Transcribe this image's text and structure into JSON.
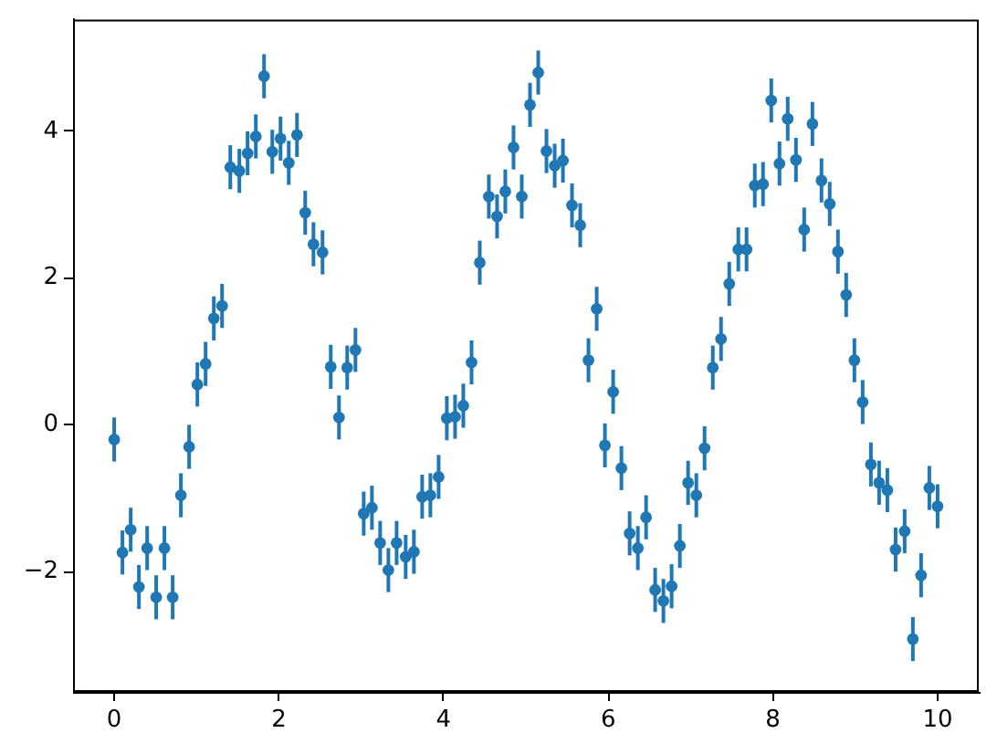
{
  "chart_data": {
    "type": "scatter",
    "color": "#1f77b4",
    "marker": "circle",
    "grid": false,
    "legend": false,
    "x": [
      0,
      0.1,
      0.2,
      0.3,
      0.4,
      0.51,
      0.61,
      0.71,
      0.81,
      0.91,
      1.01,
      1.11,
      1.21,
      1.31,
      1.41,
      1.52,
      1.62,
      1.72,
      1.82,
      1.92,
      2.02,
      2.12,
      2.22,
      2.32,
      2.42,
      2.53,
      2.63,
      2.73,
      2.83,
      2.93,
      3.03,
      3.13,
      3.23,
      3.33,
      3.43,
      3.54,
      3.64,
      3.74,
      3.84,
      3.94,
      4.04,
      4.14,
      4.24,
      4.34,
      4.44,
      4.55,
      4.65,
      4.75,
      4.85,
      4.95,
      5.05,
      5.15,
      5.25,
      5.35,
      5.45,
      5.56,
      5.66,
      5.76,
      5.86,
      5.96,
      6.06,
      6.16,
      6.26,
      6.36,
      6.46,
      6.57,
      6.67,
      6.77,
      6.87,
      6.97,
      7.07,
      7.17,
      7.27,
      7.37,
      7.47,
      7.58,
      7.68,
      7.78,
      7.88,
      7.98,
      8.08,
      8.18,
      8.28,
      8.38,
      8.48,
      8.59,
      8.69,
      8.79,
      8.89,
      8.99,
      9.09,
      9.19,
      9.29,
      9.39,
      9.49,
      9.6,
      9.7,
      9.8,
      9.9,
      10
    ],
    "values": [
      -0.2,
      -1.74,
      -1.43,
      -2.21,
      -1.68,
      -2.35,
      -1.68,
      -2.35,
      -0.96,
      -0.3,
      0.55,
      0.83,
      1.45,
      1.62,
      3.51,
      3.46,
      3.7,
      3.93,
      4.75,
      3.72,
      3.9,
      3.57,
      3.95,
      2.89,
      2.46,
      2.35,
      0.79,
      0.1,
      0.78,
      1.02,
      -1.21,
      -1.13,
      -1.61,
      -1.98,
      -1.61,
      -1.8,
      -1.73,
      -0.98,
      -0.96,
      -0.71,
      0.09,
      0.11,
      0.26,
      0.85,
      2.21,
      3.11,
      2.84,
      3.18,
      3.78,
      3.11,
      4.36,
      4.8,
      3.73,
      3.53,
      3.6,
      2.99,
      2.72,
      0.88,
      1.58,
      -0.28,
      0.45,
      -0.59,
      -1.48,
      -1.68,
      -1.26,
      -2.25,
      -2.4,
      -2.2,
      -1.65,
      -0.79,
      -0.96,
      -0.32,
      0.78,
      1.17,
      1.92,
      2.39,
      2.39,
      3.26,
      3.28,
      4.42,
      3.56,
      4.17,
      3.61,
      2.66,
      4.1,
      3.33,
      3.01,
      2.36,
      1.77,
      0.88,
      0.31,
      -0.54,
      -0.79,
      -0.89,
      -1.7,
      -1.45,
      -2.92,
      -2.05,
      -0.86,
      -1.11
    ],
    "errors": [
      0.3,
      0.3,
      0.3,
      0.3,
      0.3,
      0.3,
      0.3,
      0.3,
      0.3,
      0.3,
      0.3,
      0.3,
      0.3,
      0.3,
      0.3,
      0.3,
      0.3,
      0.3,
      0.3,
      0.3,
      0.3,
      0.3,
      0.3,
      0.3,
      0.3,
      0.3,
      0.3,
      0.3,
      0.3,
      0.3,
      0.3,
      0.3,
      0.3,
      0.3,
      0.3,
      0.3,
      0.3,
      0.3,
      0.3,
      0.3,
      0.3,
      0.3,
      0.3,
      0.3,
      0.3,
      0.3,
      0.3,
      0.3,
      0.3,
      0.3,
      0.3,
      0.3,
      0.3,
      0.3,
      0.3,
      0.3,
      0.3,
      0.3,
      0.3,
      0.3,
      0.3,
      0.3,
      0.3,
      0.3,
      0.3,
      0.3,
      0.3,
      0.3,
      0.3,
      0.3,
      0.3,
      0.3,
      0.3,
      0.3,
      0.3,
      0.3,
      0.3,
      0.3,
      0.3,
      0.3,
      0.3,
      0.3,
      0.3,
      0.3,
      0.3,
      0.3,
      0.3,
      0.3,
      0.3,
      0.3,
      0.3,
      0.3,
      0.3,
      0.3,
      0.3,
      0.3,
      0.3,
      0.3,
      0.3,
      0.3
    ],
    "xlim": [
      -0.5,
      10.5
    ],
    "ylim": [
      -3.64,
      5.52
    ],
    "xticks": [
      0,
      2,
      4,
      6,
      8,
      10
    ],
    "yticks": [
      {
        "value": -2,
        "label": "−2"
      },
      0,
      2,
      4
    ]
  }
}
